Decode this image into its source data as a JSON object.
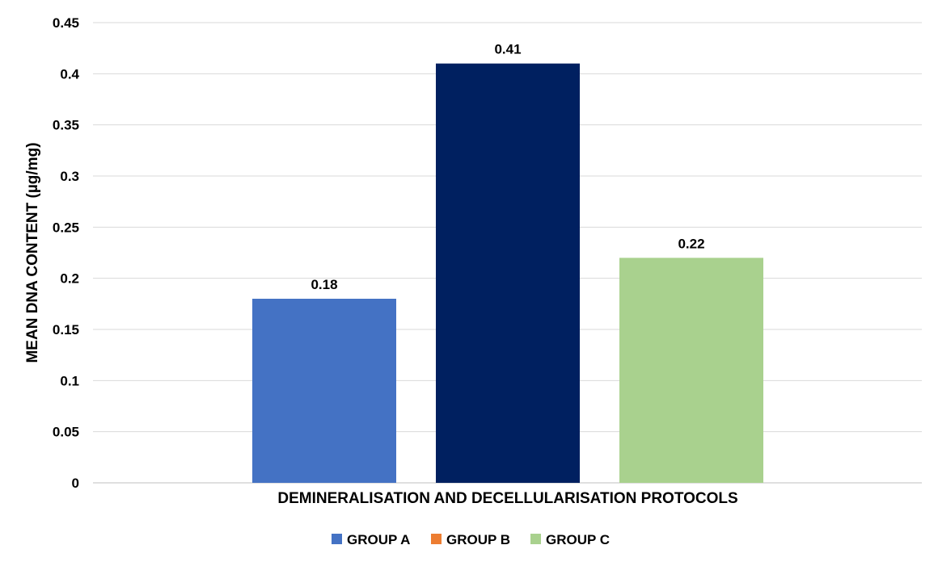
{
  "chart_data": {
    "type": "bar",
    "title": "",
    "xlabel": "DEMINERALISATION AND DECELLULARISATION PROTOCOLS",
    "ylabel": "MEAN DNA CONTENT (µg/mg)",
    "ylim": [
      0,
      0.45
    ],
    "yticks": [
      "0",
      "0.05",
      "0.1",
      "0.15",
      "0.2",
      "0.25",
      "0.3",
      "0.35",
      "0.4",
      "0.45"
    ],
    "ytick_values": [
      0,
      0.05,
      0.1,
      0.15,
      0.2,
      0.25,
      0.3,
      0.35,
      0.4,
      0.45
    ],
    "grid": true,
    "legend_position": "bottom",
    "series": [
      {
        "name": "GROUP A",
        "value": 0.18,
        "label": "0.18",
        "color": "#4472C4",
        "legend_color": "#4472C4"
      },
      {
        "name": "GROUP B",
        "value": 0.41,
        "label": "0.41",
        "color": "#002060",
        "legend_color": "#ED7D31"
      },
      {
        "name": "GROUP C",
        "value": 0.22,
        "label": "0.22",
        "color": "#A9D18E",
        "legend_color": "#A9D18E"
      }
    ]
  }
}
